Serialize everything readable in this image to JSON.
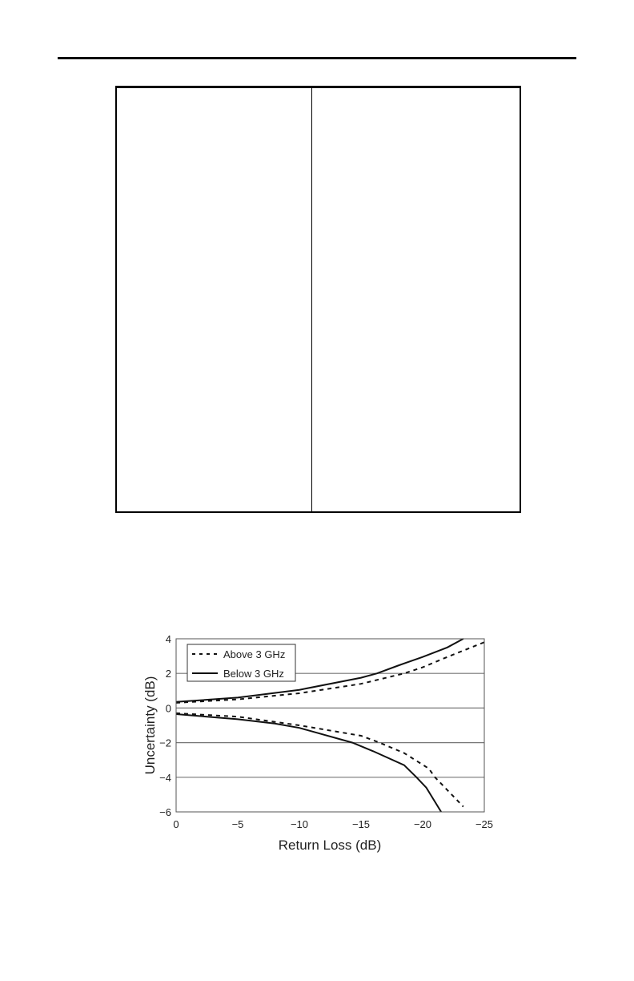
{
  "chart_data": {
    "type": "line",
    "xlabel": "Return Loss (dB)",
    "ylabel": "Uncertainty (dB)",
    "xlim": [
      0,
      -25
    ],
    "ylim": [
      -6,
      4
    ],
    "xticks": [
      "0",
      "−5",
      "−10",
      "−15",
      "−20",
      "−25"
    ],
    "xtick_values": [
      0,
      -5,
      -10,
      -15,
      -20,
      -25
    ],
    "yticks": [
      "4",
      "2",
      "0",
      "−2",
      "−4",
      "−6"
    ],
    "ytick_values": [
      4,
      2,
      0,
      -2,
      -4,
      -6
    ],
    "grid": "horizontal",
    "legend": "top-left",
    "series": [
      {
        "name": "Above 3 GHz",
        "style": "dashed",
        "color": "#111111",
        "upper": {
          "x": [
            0,
            -5,
            -10,
            -15,
            -18.5,
            -20,
            -22,
            -25
          ],
          "y": [
            0.3,
            0.5,
            0.85,
            1.4,
            2,
            2.35,
            2.95,
            3.8
          ]
        },
        "lower": {
          "x": [
            0,
            -5,
            -10,
            -15,
            -16.5,
            -18.5,
            -20.5,
            -21,
            -23.3
          ],
          "y": [
            -0.3,
            -0.5,
            -1,
            -1.6,
            -2,
            -2.6,
            -3.5,
            -4,
            -5.7
          ]
        }
      },
      {
        "name": "Below 3 GHz",
        "style": "solid",
        "color": "#111111",
        "upper": {
          "x": [
            0,
            -5,
            -10,
            -15,
            -16.3,
            -18,
            -20,
            -22,
            -23.3
          ],
          "y": [
            0.35,
            0.6,
            1.05,
            1.75,
            2,
            2.45,
            2.95,
            3.5,
            4
          ]
        },
        "lower": {
          "x": [
            0,
            -5,
            -8,
            -10,
            -14.3,
            -16,
            -18.5,
            -19.5,
            -20.3,
            -21.5
          ],
          "y": [
            -0.35,
            -0.65,
            -0.9,
            -1.15,
            -2,
            -2.5,
            -3.3,
            -4,
            -4.6,
            -6
          ]
        }
      }
    ]
  }
}
